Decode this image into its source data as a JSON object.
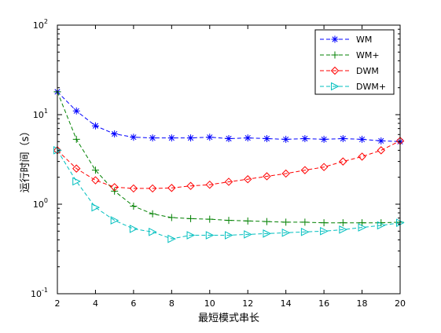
{
  "chart_data": {
    "type": "line",
    "title": "",
    "xlabel": "最短模式串长",
    "ylabel": "运行时间（s）",
    "x_ticks": [
      "2",
      "4",
      "6",
      "8",
      "10",
      "12",
      "14",
      "16",
      "18",
      "20"
    ],
    "x_tick_values": [
      2,
      4,
      6,
      8,
      10,
      12,
      14,
      16,
      18,
      20
    ],
    "y_ticks": [
      {
        "value": 0.1,
        "base": "10",
        "exp": "-1"
      },
      {
        "value": 1,
        "base": "10",
        "exp": "0"
      },
      {
        "value": 10,
        "base": "10",
        "exp": "1"
      },
      {
        "value": 100,
        "base": "10",
        "exp": "2"
      }
    ],
    "xlim": [
      2,
      20
    ],
    "ylim": [
      0.1,
      100
    ],
    "yscale": "log",
    "grid": false,
    "legend_position": "top-right",
    "x": [
      2,
      3,
      4,
      5,
      6,
      7,
      8,
      9,
      10,
      11,
      12,
      13,
      14,
      15,
      16,
      17,
      18,
      19,
      20
    ],
    "series": [
      {
        "name": "WM",
        "color": "#0000ff",
        "marker": "asterisk",
        "values": [
          18.0,
          11.0,
          7.5,
          6.1,
          5.6,
          5.5,
          5.5,
          5.5,
          5.6,
          5.4,
          5.5,
          5.4,
          5.3,
          5.4,
          5.3,
          5.4,
          5.3,
          5.1,
          5.0
        ]
      },
      {
        "name": "WM+",
        "color": "#008000",
        "marker": "plus",
        "values": [
          18.0,
          5.3,
          2.4,
          1.4,
          0.95,
          0.78,
          0.71,
          0.69,
          0.68,
          0.66,
          0.65,
          0.64,
          0.63,
          0.63,
          0.62,
          0.62,
          0.62,
          0.62,
          0.63
        ]
      },
      {
        "name": "DWM",
        "color": "#ff0000",
        "marker": "diamond",
        "values": [
          4.0,
          2.5,
          1.85,
          1.55,
          1.5,
          1.5,
          1.52,
          1.6,
          1.65,
          1.78,
          1.9,
          2.05,
          2.2,
          2.4,
          2.6,
          3.0,
          3.4,
          4.0,
          5.1
        ]
      },
      {
        "name": "DWM+",
        "color": "#00bfbf",
        "marker": "triangle-right",
        "values": [
          4.0,
          1.8,
          0.92,
          0.66,
          0.53,
          0.49,
          0.41,
          0.45,
          0.45,
          0.45,
          0.46,
          0.47,
          0.48,
          0.49,
          0.5,
          0.52,
          0.55,
          0.58,
          0.62
        ]
      }
    ]
  }
}
